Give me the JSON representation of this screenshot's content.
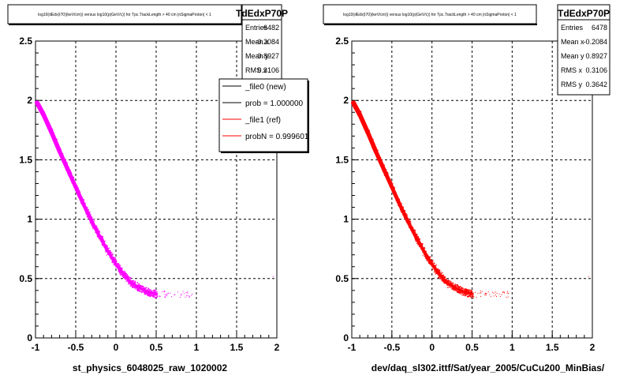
{
  "chart_data": [
    {
      "type": "scatter",
      "title": "log10(dEdx(I70)(keV/cm)) versus log10(p(GeV/c)) for Tpc.TrackLength > 40 cm |nSigmaProton| < 1",
      "xlabel": "st_physics_6048025_raw_1020002",
      "ylabel": "",
      "xlim": [
        -1,
        2
      ],
      "ylim": [
        0,
        2.5
      ],
      "xticks": [
        "-1",
        "-0.5",
        "0",
        "0.5",
        "1",
        "1.5",
        "2"
      ],
      "yticks": [
        "0",
        "0.5",
        "1",
        "1.5",
        "2",
        "2.5"
      ],
      "grid": true,
      "series": [
        {
          "name": "",
          "color": "#ff00ff",
          "x": [
            -0.98,
            -0.9,
            -0.8,
            -0.7,
            -0.6,
            -0.5,
            -0.4,
            -0.3,
            -0.2,
            -0.1,
            0.0,
            0.1,
            0.2,
            0.3,
            0.4,
            0.5
          ],
          "y": [
            1.98,
            1.88,
            1.73,
            1.57,
            1.42,
            1.27,
            1.12,
            0.98,
            0.85,
            0.73,
            0.62,
            0.53,
            0.46,
            0.42,
            0.39,
            0.37
          ]
        }
      ],
      "stats": {
        "name": "TdEdxP70P",
        "rows": [
          {
            "label": "Entries",
            "value": "6482"
          },
          {
            "label": "Mean x",
            "value": "-0.2084"
          },
          {
            "label": "Mean y",
            "value": "0.8927"
          },
          {
            "label": "RMS x",
            "value": "0.3106"
          }
        ]
      },
      "legend": {
        "placement": "top-right",
        "entries": [
          {
            "label": "_file0 (new)",
            "color": "#000000"
          },
          {
            "label": "prob = 1.000000",
            "color": "#000000"
          },
          {
            "label": "_file1 (ref)",
            "color": "#ff0000"
          },
          {
            "label": "probN = 0.999601",
            "color": "#ff0000"
          }
        ]
      }
    },
    {
      "type": "scatter",
      "title": "log10(dEdx(I70)(keV/cm)) versus log10(p(GeV/c)) for Tpc.TrackLength > 40 cm |nSigmaProton| < 1",
      "xlabel": "dev/daq_sl302.ittf/Sat/year_2005/CuCu200_MinBias/",
      "ylabel": "",
      "xlim": [
        -1,
        2
      ],
      "ylim": [
        0,
        2.5
      ],
      "xticks": [
        "-1",
        "-0.5",
        "0",
        "0.5",
        "1",
        "1.5",
        "2"
      ],
      "yticks": [
        "0",
        "0.5",
        "1",
        "1.5",
        "2",
        "2.5"
      ],
      "grid": true,
      "series": [
        {
          "name": "",
          "color": "#ff0000",
          "x": [
            -0.98,
            -0.9,
            -0.8,
            -0.7,
            -0.6,
            -0.5,
            -0.4,
            -0.3,
            -0.2,
            -0.1,
            0.0,
            0.1,
            0.2,
            0.3,
            0.4,
            0.5
          ],
          "y": [
            1.98,
            1.88,
            1.73,
            1.57,
            1.42,
            1.27,
            1.12,
            0.98,
            0.85,
            0.73,
            0.62,
            0.53,
            0.46,
            0.42,
            0.39,
            0.37
          ]
        }
      ],
      "stats": {
        "name": "TdEdxP70P",
        "rows": [
          {
            "label": "Entries",
            "value": "6478"
          },
          {
            "label": "Mean x",
            "value": "-0.2084"
          },
          {
            "label": "Mean y",
            "value": "0.8927"
          },
          {
            "label": "RMS x",
            "value": "0.3106"
          },
          {
            "label": "RMS y",
            "value": "0.3642"
          }
        ]
      }
    }
  ]
}
